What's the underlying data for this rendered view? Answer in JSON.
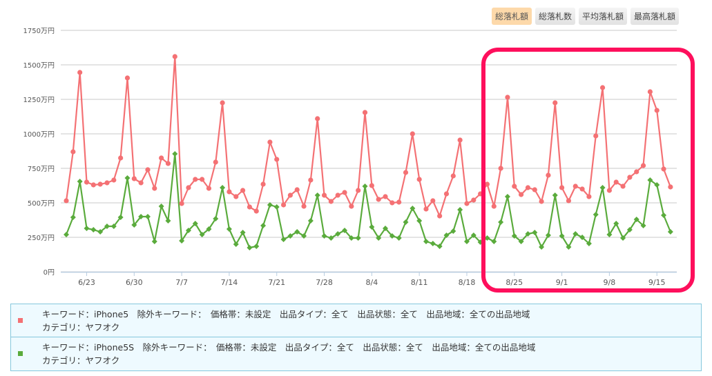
{
  "buttons": [
    {
      "label": "総落札額",
      "active": true
    },
    {
      "label": "総落札数"
    },
    {
      "label": "平均落札額"
    },
    {
      "label": "最高落札額"
    }
  ],
  "chart_data": {
    "type": "line",
    "title": "",
    "ylabel": "",
    "ylim": [
      0,
      1750
    ],
    "y_ticks": [
      "0円",
      "250万円",
      "500万円",
      "750万円",
      "1000万円",
      "1250万円",
      "1500万円",
      "1750万円"
    ],
    "x_start": "6/20",
    "x_ticks": [
      {
        "label": "6/23",
        "index": 3
      },
      {
        "label": "6/30",
        "index": 10
      },
      {
        "label": "7/7",
        "index": 17
      },
      {
        "label": "7/14",
        "index": 24
      },
      {
        "label": "7/21",
        "index": 31
      },
      {
        "label": "7/28",
        "index": 38
      },
      {
        "label": "8/4",
        "index": 45
      },
      {
        "label": "8/11",
        "index": 52
      },
      {
        "label": "8/18",
        "index": 59
      },
      {
        "label": "8/25",
        "index": 66
      },
      {
        "label": "9/1",
        "index": 73
      },
      {
        "label": "9/8",
        "index": 80
      },
      {
        "label": "9/15",
        "index": 87
      }
    ],
    "grid": true,
    "series": [
      {
        "name": "iPhone5",
        "color": "#f47174",
        "marker": "circle",
        "values": [
          515,
          870,
          1445,
          650,
          630,
          635,
          645,
          665,
          825,
          1405,
          675,
          645,
          740,
          605,
          825,
          785,
          1560,
          495,
          610,
          670,
          670,
          605,
          795,
          1225,
          580,
          545,
          590,
          470,
          440,
          635,
          940,
          815,
          485,
          555,
          595,
          475,
          665,
          1110,
          555,
          510,
          555,
          575,
          475,
          590,
          1155,
          625,
          525,
          545,
          500,
          505,
          720,
          1000,
          670,
          455,
          515,
          405,
          565,
          695,
          955,
          495,
          520,
          565,
          635,
          475,
          750,
          1265,
          620,
          560,
          610,
          595,
          510,
          700,
          1225,
          610,
          515,
          620,
          600,
          545,
          985,
          1335,
          590,
          650,
          620,
          685,
          725,
          770,
          1305,
          1170,
          745,
          615
        ]
      },
      {
        "name": "iPhone5S",
        "color": "#5aab3c",
        "marker": "diamond",
        "values": [
          270,
          395,
          655,
          315,
          305,
          290,
          330,
          330,
          395,
          680,
          340,
          400,
          400,
          220,
          475,
          370,
          855,
          225,
          300,
          350,
          270,
          310,
          385,
          610,
          310,
          200,
          285,
          175,
          185,
          335,
          485,
          470,
          235,
          260,
          290,
          260,
          370,
          555,
          260,
          245,
          275,
          300,
          245,
          245,
          620,
          325,
          245,
          315,
          260,
          245,
          360,
          460,
          370,
          220,
          205,
          185,
          265,
          295,
          450,
          220,
          265,
          215,
          245,
          220,
          360,
          545,
          260,
          220,
          275,
          285,
          180,
          265,
          555,
          260,
          180,
          275,
          250,
          205,
          415,
          610,
          270,
          350,
          245,
          305,
          380,
          335,
          665,
          630,
          410,
          290
        ]
      }
    ]
  },
  "legend": [
    {
      "line1": "キーワード：iPhone5　除外キーワード：　価格帯：未設定　出品タイプ：全て　出品状態：全て　出品地域：全ての出品地域",
      "line2": "カテゴリ：ヤフオク",
      "color": "#f47174"
    },
    {
      "line1": "キーワード：iPhone5S　除外キーワード：　価格帯：未設定　出品タイプ：全て　出品状態：全て　出品地域：全ての出品地域",
      "line2": "カテゴリ：ヤフオク",
      "color": "#5aab3c"
    }
  ]
}
